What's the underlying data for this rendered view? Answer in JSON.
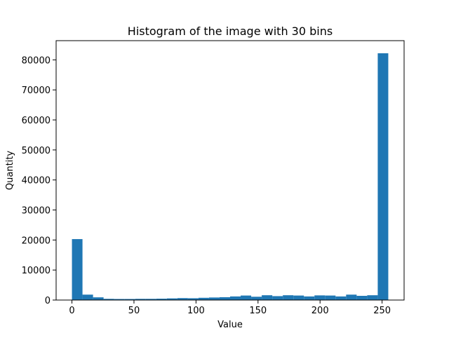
{
  "chart_data": {
    "type": "bar",
    "title": "Histogram of the image with 30 bins",
    "xlabel": "Value",
    "ylabel": "Quantity",
    "xlim": [
      -12.75,
      267.75
    ],
    "ylim": [
      0,
      86400
    ],
    "xticks": [
      0,
      50,
      100,
      150,
      200,
      250
    ],
    "yticks": [
      0,
      10000,
      20000,
      30000,
      40000,
      50000,
      60000,
      70000,
      80000
    ],
    "bar_color": "#1f77b4",
    "grid": false,
    "bin_width": 8.5,
    "bin_edges_start": 0,
    "values": [
      20300,
      1800,
      900,
      400,
      350,
      350,
      400,
      400,
      450,
      550,
      650,
      600,
      750,
      850,
      950,
      1200,
      1500,
      1100,
      1600,
      1300,
      1600,
      1500,
      1200,
      1550,
      1500,
      1200,
      1800,
      1400,
      1600,
      82200
    ]
  }
}
